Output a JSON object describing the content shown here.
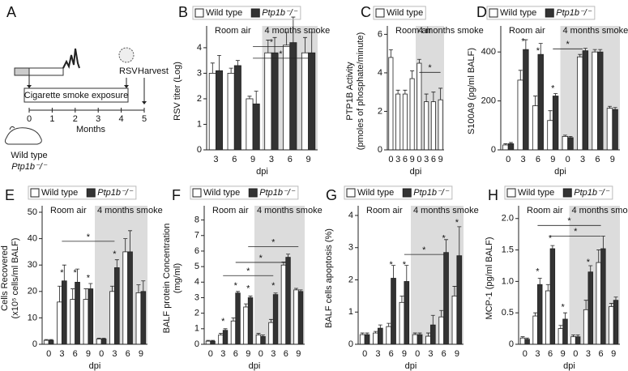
{
  "schematic": {
    "panel": "A",
    "virus": "RSV",
    "harvest": "Harvest",
    "exposure": "Cigarette smoke exposure",
    "axis_label": "Months",
    "months": [
      0,
      1,
      2,
      3,
      4,
      5
    ],
    "mouse_lines": [
      "Wild type",
      "Ptp1b⁻/⁻"
    ]
  },
  "chart_data": [
    {
      "panel": "B",
      "type": "bar",
      "categories": [
        "3",
        "6",
        "9",
        "3",
        "6",
        "9"
      ],
      "xlabel": "dpi",
      "ylabel": "RSV titer (Log)",
      "annotations": [
        "Room air",
        "4 months smoke"
      ],
      "significance_label": "*",
      "series": [
        {
          "name": "Wild type",
          "color": "#ffffff",
          "values": [
            3.0,
            3.0,
            2.0,
            3.8,
            4.1,
            3.8
          ],
          "errors": [
            0.4,
            0.2,
            0.1,
            0.5,
            0.5,
            0.6
          ]
        },
        {
          "name": "Ptp1b⁻/⁻",
          "color": "#333333",
          "values": [
            3.1,
            3.3,
            1.8,
            3.8,
            4.2,
            3.8
          ],
          "errors": [
            0.6,
            0.2,
            0.5,
            0.6,
            1.0,
            0.8
          ]
        }
      ],
      "ylim": [
        0,
        4.6
      ],
      "yticks": [
        0,
        1,
        2,
        3,
        4
      ]
    },
    {
      "panel": "C",
      "type": "bar",
      "categories": [
        "0",
        "3",
        "6",
        "9",
        "0",
        "3",
        "6",
        "9"
      ],
      "xlabel": "dpi",
      "ylabel": "PTP1B Activity",
      "ylabel_sub": "(pmoles of phosphate/minute)",
      "annotations": [
        "Room air",
        "4 months smoke"
      ],
      "significance_label": "*",
      "series": [
        {
          "name": "Wild type",
          "color": "#ffffff",
          "values": [
            4.8,
            2.9,
            2.9,
            3.7,
            4.5,
            2.5,
            2.5,
            2.6
          ],
          "errors": [
            0.4,
            0.2,
            0.2,
            0.4,
            0.2,
            0.4,
            0.5,
            0.6
          ]
        }
      ],
      "ylim": [
        0,
        6.1
      ],
      "yticks": [
        0,
        2,
        4,
        6
      ]
    },
    {
      "panel": "D",
      "type": "bar",
      "categories": [
        "0",
        "3",
        "6",
        "9",
        "0",
        "3",
        "6",
        "9"
      ],
      "xlabel": "dpi",
      "ylabel": "S100A9 (pg/ml BALF)",
      "annotations": [
        "Room air",
        "4 months smoke"
      ],
      "significance_label": "*",
      "series": [
        {
          "name": "Wild type",
          "color": "#ffffff",
          "values": [
            20,
            285,
            180,
            120,
            55,
            380,
            400,
            170
          ],
          "errors": [
            5,
            40,
            40,
            40,
            5,
            10,
            10,
            8
          ]
        },
        {
          "name": "Ptp1b⁻/⁻",
          "color": "#333333",
          "values": [
            25,
            410,
            390,
            220,
            50,
            405,
            400,
            165
          ],
          "errors": [
            5,
            40,
            45,
            10,
            5,
            10,
            10,
            8
          ]
        }
      ],
      "ylim": [
        0,
        480
      ],
      "yticks": [
        0,
        200,
        400
      ]
    },
    {
      "panel": "E",
      "type": "bar",
      "categories": [
        "0",
        "3",
        "6",
        "9",
        "0",
        "3",
        "6",
        "9"
      ],
      "xlabel": "dpi",
      "ylabel": "Cells Recovered",
      "ylabel_sub": "(x10⁵ cells/ml BALF)",
      "annotations": [
        "Room air",
        "4 months smoke"
      ],
      "significance_label": "*",
      "series": [
        {
          "name": "Wild type",
          "color": "#ffffff",
          "values": [
            1.5,
            16,
            17,
            17,
            2,
            20,
            35,
            19.5
          ],
          "errors": [
            0.3,
            6,
            4,
            4,
            0.3,
            2,
            5,
            3
          ]
        },
        {
          "name": "Ptp1b⁻/⁻",
          "color": "#333333",
          "values": [
            1.5,
            24,
            23.5,
            21,
            2,
            29,
            35,
            20
          ],
          "errors": [
            0.3,
            6,
            5,
            2,
            0.3,
            3,
            8,
            4
          ]
        }
      ],
      "ylim": [
        0,
        50
      ],
      "yticks": [
        0,
        10,
        20,
        30,
        40,
        50
      ]
    },
    {
      "panel": "F",
      "type": "bar",
      "categories": [
        "0",
        "3",
        "6",
        "9",
        "0",
        "3",
        "6",
        "9"
      ],
      "xlabel": "dpi",
      "ylabel": "BALF protein Concentration",
      "ylabel_sub": "(mg/ml)",
      "annotations": [
        "Room air",
        "4 months smoke"
      ],
      "significance_label": "*",
      "series": [
        {
          "name": "Wild type",
          "color": "#ffffff",
          "values": [
            0.2,
            0.6,
            1.5,
            2.4,
            0.6,
            1.4,
            5.1,
            3.5
          ],
          "errors": [
            0.05,
            0.1,
            0.2,
            0.2,
            0.1,
            0.2,
            0.2,
            0.1
          ]
        },
        {
          "name": "Ptp1b⁻/⁻",
          "color": "#333333",
          "values": [
            0.2,
            0.9,
            3.3,
            3.0,
            0.5,
            3.2,
            5.6,
            3.4
          ],
          "errors": [
            0.05,
            0.1,
            0.1,
            0.1,
            0.1,
            0.1,
            0.2,
            0.1
          ]
        }
      ],
      "ylim": [
        0,
        8.5
      ],
      "yticks": [
        0,
        1,
        2,
        3,
        4,
        5,
        6,
        7,
        8
      ]
    },
    {
      "panel": "G",
      "type": "bar",
      "categories": [
        "0",
        "3",
        "6",
        "9",
        "0",
        "3",
        "6",
        "9"
      ],
      "xlabel": "dpi",
      "ylabel": "BALF cells apoptosis (%)",
      "annotations": [
        "Room air",
        "4 months smoke"
      ],
      "significance_label": "*",
      "series": [
        {
          "name": "Wild type",
          "color": "#ffffff",
          "values": [
            0.3,
            0.35,
            0.55,
            1.3,
            0.3,
            0.25,
            0.85,
            1.5
          ],
          "errors": [
            0.05,
            0.05,
            0.1,
            0.2,
            0.05,
            0.1,
            0.2,
            0.3
          ]
        },
        {
          "name": "Ptp1b⁻/⁻",
          "color": "#333333",
          "values": [
            0.3,
            0.5,
            2.05,
            1.95,
            0.3,
            0.6,
            2.85,
            2.75
          ],
          "errors": [
            0.05,
            0.1,
            0.4,
            0.5,
            0.05,
            0.3,
            0.4,
            0.9
          ]
        }
      ],
      "ylim": [
        0,
        4.1
      ],
      "yticks": [
        0,
        1,
        2,
        3,
        4
      ]
    },
    {
      "panel": "H",
      "type": "bar",
      "categories": [
        "0",
        "3",
        "6",
        "9",
        "0",
        "3",
        "6",
        "9"
      ],
      "xlabel": "dpi",
      "ylabel": "MCP-1 (pg/ml BALF)",
      "annotations": [
        "Room air",
        "4 months smoke"
      ],
      "significance_label": "*",
      "series": [
        {
          "name": "Wild type",
          "color": "#ffffff",
          "values": [
            0.1,
            0.45,
            0.85,
            0.25,
            0.12,
            0.55,
            1.3,
            0.6
          ],
          "errors": [
            0.02,
            0.05,
            0.1,
            0.05,
            0.03,
            0.15,
            0.2,
            0.05
          ]
        },
        {
          "name": "Ptp1b⁻/⁻",
          "color": "#333333",
          "values": [
            0.08,
            0.95,
            1.52,
            0.4,
            0.12,
            1.15,
            1.52,
            0.7
          ],
          "errors": [
            0.02,
            0.1,
            0.05,
            0.1,
            0.03,
            0.1,
            0.2,
            0.05
          ]
        }
      ],
      "ylim": [
        0,
        2.1
      ],
      "yticks": [
        0,
        0.5,
        {
          "value": 1,
          "label": "1.0"
        },
        1.5,
        {
          "value": 2,
          "label": "2.0"
        }
      ]
    }
  ]
}
